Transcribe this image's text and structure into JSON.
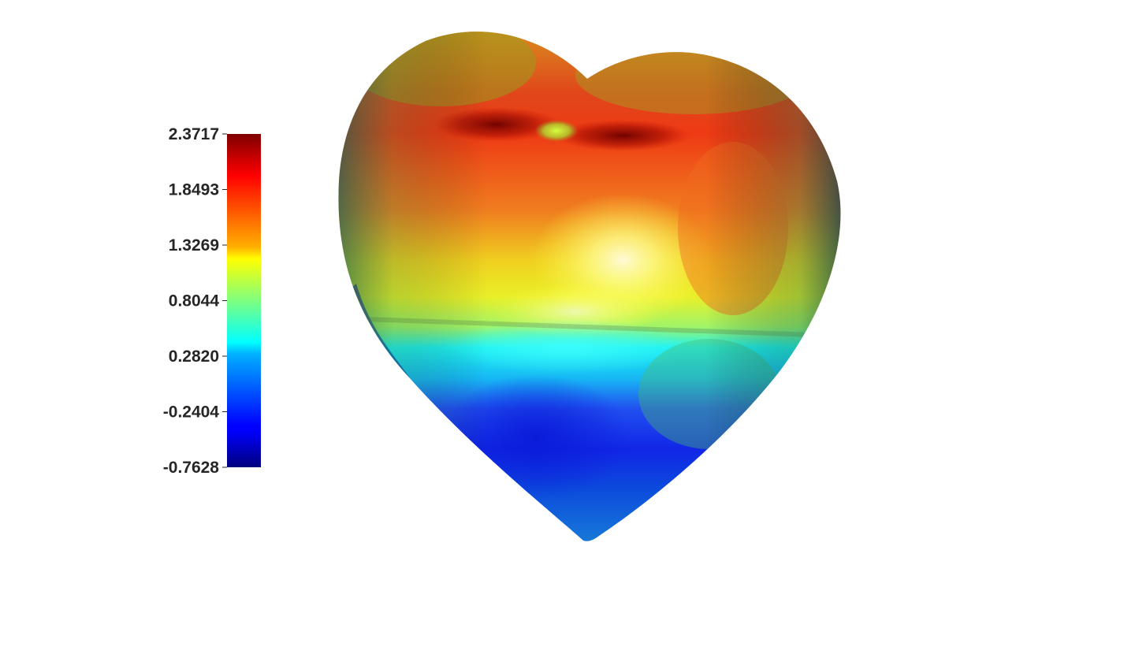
{
  "colorbar": {
    "min": -0.7628,
    "max": 2.3717,
    "colormap": "jet",
    "ticks": [
      {
        "value": 2.3717,
        "label": "2.3717"
      },
      {
        "value": 1.8493,
        "label": "1.8493"
      },
      {
        "value": 1.3269,
        "label": "1.3269"
      },
      {
        "value": 0.8044,
        "label": "0.8044"
      },
      {
        "value": 0.282,
        "label": "0.2820"
      },
      {
        "value": -0.2404,
        "label": "-0.2404"
      },
      {
        "value": -0.7628,
        "label": "-0.7628"
      }
    ]
  },
  "surface": {
    "shape": "heart",
    "colormap": "jet"
  }
}
